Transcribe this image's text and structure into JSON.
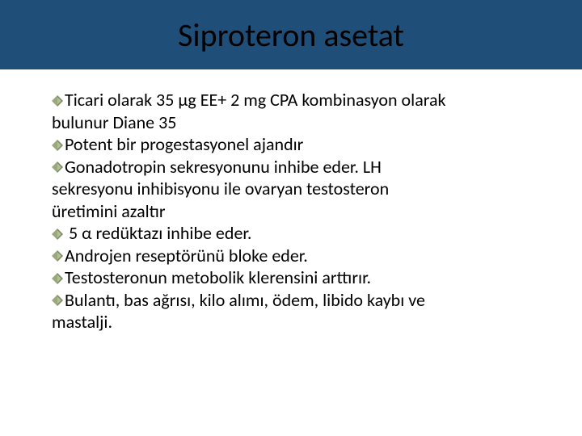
{
  "slide": {
    "title": "Siproteron asetat",
    "title_bar_color": "#1f4e79",
    "title_text_color": "#000000",
    "background_color": "#ffffff",
    "bullet_glyph_color": "#9aa97c",
    "body_text_color": "#000000",
    "title_fontsize": 40,
    "body_fontsize": 22,
    "bullets": [
      {
        "lines": [
          "Ticari olarak 35 µg EE+ 2 mg CPA kombinasyon olarak",
          "bulunur Diane 35"
        ]
      },
      {
        "lines": [
          "Potent bir progestasyonel ajandır"
        ]
      },
      {
        "lines": [
          "Gonadotropin sekresyonunu inhibe eder. LH",
          "sekresyonu inhibisyonu ile ovaryan testosteron",
          "üretimini azaltır"
        ]
      },
      {
        "lines": [
          "5 α redüktazı inhibe eder.",
          ""
        ],
        "space_after_glyph": true
      },
      {
        "lines": [
          "Androjen reseptörünü bloke eder."
        ]
      },
      {
        "lines": [
          "Testosteronun metobolik klerensini arttırır."
        ]
      },
      {
        "lines": [
          "Bulantı, bas ağrısı, kilo alımı, ödem, libido kaybı ve",
          "mastalji."
        ]
      }
    ]
  }
}
